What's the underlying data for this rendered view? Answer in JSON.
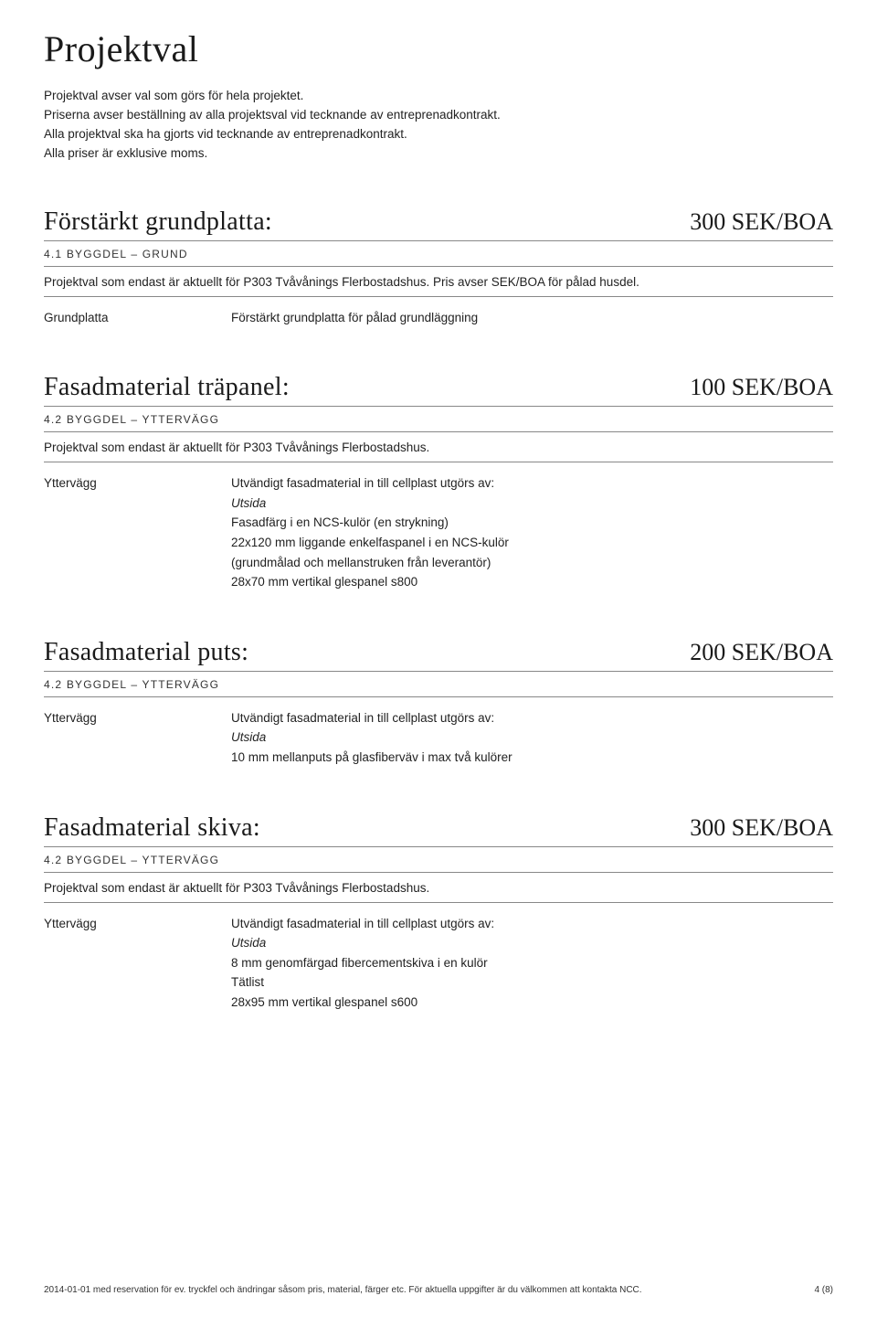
{
  "page": {
    "title": "Projektval",
    "intro_lines": [
      "Projektval avser val som görs för hela projektet.",
      "Priserna avser beställning av alla projektsval vid tecknande av entreprenadkontrakt.",
      "Alla projektval ska ha gjorts vid tecknande av entreprenadkontrakt.",
      "Alla priser är exklusive moms."
    ]
  },
  "sections": [
    {
      "title": "Förstärkt grundplatta:",
      "price": "300 SEK/BOA",
      "sub": "4.1 BYGGDEL – GRUND",
      "note": "Projektval som endast är aktuellt för P303 Tvåvånings Flerbostadshus. Pris avser SEK/BOA för pålad husdel.",
      "spec_label": "Grundplatta",
      "spec_lines": [
        {
          "text": "Förstärkt grundplatta för pålad grundläggning",
          "italic": false
        }
      ]
    },
    {
      "title": "Fasadmaterial träpanel:",
      "price": "100 SEK/BOA",
      "sub": "4.2 BYGGDEL – YTTERVÄGG",
      "note": "Projektval som endast är aktuellt för P303 Tvåvånings Flerbostadshus.",
      "spec_label": "Yttervägg",
      "spec_lines": [
        {
          "text": "Utvändigt fasadmaterial in till cellplast utgörs av:",
          "italic": false
        },
        {
          "text": "Utsida",
          "italic": true
        },
        {
          "text": "Fasadfärg i en NCS-kulör (en strykning)",
          "italic": false
        },
        {
          "text": "22x120 mm liggande enkelfaspanel i en NCS-kulör",
          "italic": false
        },
        {
          "text": "(grundmålad och mellanstruken från leverantör)",
          "italic": false
        },
        {
          "text": "28x70 mm vertikal glespanel s800",
          "italic": false
        }
      ]
    },
    {
      "title": "Fasadmaterial puts:",
      "price": "200 SEK/BOA",
      "sub": "4.2 BYGGDEL – YTTERVÄGG",
      "note": null,
      "spec_label": "Yttervägg",
      "spec_lines": [
        {
          "text": "Utvändigt fasadmaterial in till cellplast utgörs av:",
          "italic": false
        },
        {
          "text": "Utsida",
          "italic": true
        },
        {
          "text": "10 mm mellanputs på glasfiberväv i max två kulörer",
          "italic": false
        }
      ]
    },
    {
      "title": "Fasadmaterial skiva:",
      "price": "300 SEK/BOA",
      "sub": "4.2 BYGGDEL – YTTERVÄGG",
      "note": "Projektval som endast är aktuellt för P303 Tvåvånings Flerbostadshus.",
      "spec_label": "Yttervägg",
      "spec_lines": [
        {
          "text": "Utvändigt fasadmaterial in till cellplast utgörs av:",
          "italic": false
        },
        {
          "text": "Utsida",
          "italic": true
        },
        {
          "text": "8 mm genomfärgad fibercementskiva i en kulör",
          "italic": false
        },
        {
          "text": "Tätlist",
          "italic": false
        },
        {
          "text": "28x95 mm vertikal glespanel s600",
          "italic": false
        }
      ]
    }
  ],
  "footer": {
    "left": "2014-01-01 med reservation för ev. tryckfel och ändringar såsom pris, material, färger etc. För aktuella uppgifter är du välkommen att kontakta NCC.",
    "right": "4 (8)"
  }
}
